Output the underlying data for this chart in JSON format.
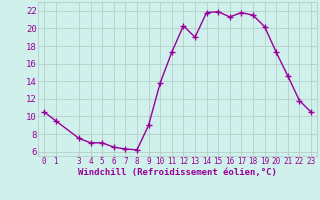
{
  "x": [
    0,
    1,
    3,
    4,
    5,
    6,
    7,
    8,
    9,
    10,
    11,
    12,
    13,
    14,
    15,
    16,
    17,
    18,
    19,
    20,
    21,
    22,
    23
  ],
  "y": [
    10.5,
    9.5,
    7.5,
    7.0,
    7.0,
    6.5,
    6.3,
    6.2,
    9.0,
    13.8,
    17.3,
    20.3,
    19.0,
    21.8,
    21.9,
    21.3,
    21.8,
    21.5,
    20.2,
    17.3,
    14.6,
    11.8,
    10.5
  ],
  "line_color": "#990099",
  "marker": "+",
  "marker_size": 4,
  "marker_linewidth": 1.0,
  "bg_color": "#cff0eb",
  "grid_color": "#b0c8c4",
  "xlabel": "Windchill (Refroidissement éolien,°C)",
  "xlim": [
    -0.5,
    23.5
  ],
  "ylim": [
    5.5,
    23.0
  ],
  "yticks": [
    6,
    8,
    10,
    12,
    14,
    16,
    18,
    20,
    22
  ],
  "xticks": [
    0,
    1,
    3,
    4,
    5,
    6,
    7,
    8,
    9,
    10,
    11,
    12,
    13,
    14,
    15,
    16,
    17,
    18,
    19,
    20,
    21,
    22,
    23
  ],
  "label_color": "#990099",
  "tick_color": "#990099",
  "xlabel_fontsize": 6.5,
  "ytick_fontsize": 6.5,
  "xtick_fontsize": 5.5,
  "line_width": 1.0
}
